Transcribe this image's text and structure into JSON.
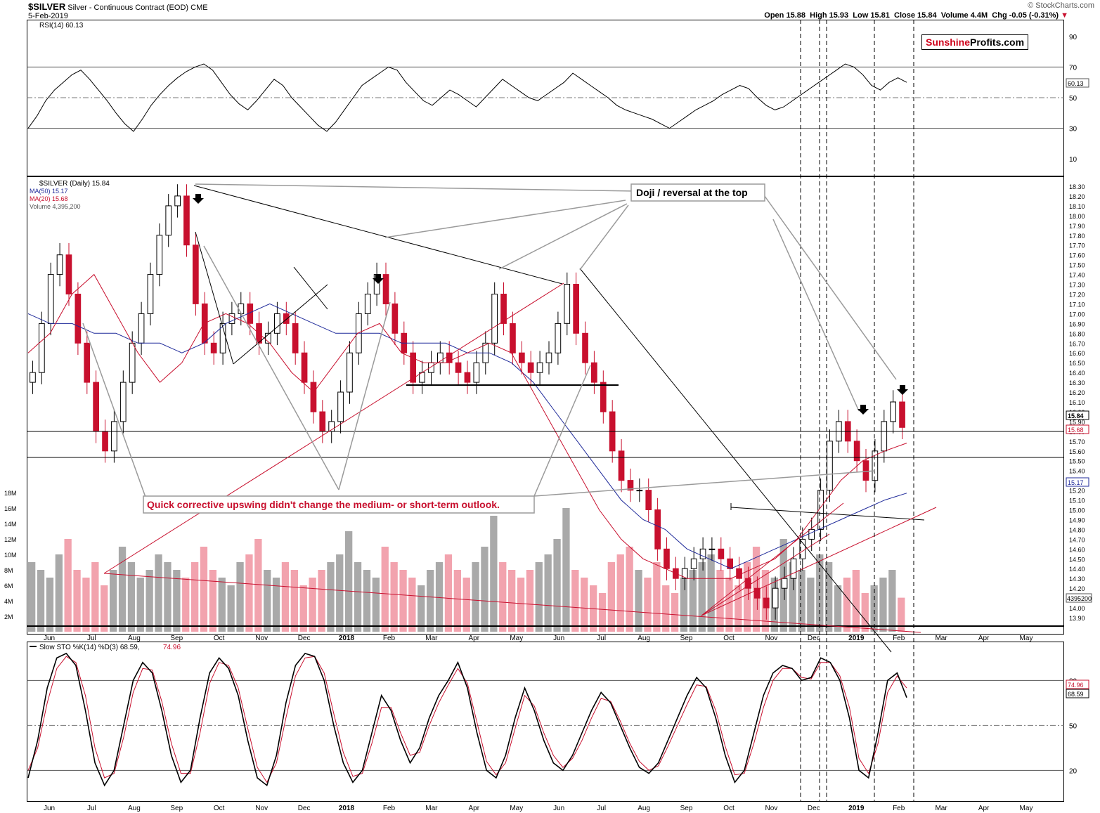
{
  "header": {
    "symbol": "$SILVER",
    "description": "Silver - Continuous Contract (EOD)",
    "exchange": "CME",
    "date": "5-Feb-2019",
    "ohlc": {
      "open_label": "Open",
      "open": "15.88",
      "high_label": "High",
      "high": "15.93",
      "low_label": "Low",
      "low": "15.81",
      "close_label": "Close",
      "close": "15.84",
      "volume_label": "Volume",
      "volume": "4.4M",
      "chg_label": "Chg",
      "chg": "-0.05 (-0.31%)"
    },
    "watermark": "© StockCharts.com"
  },
  "logo": {
    "part1": "Sunshine",
    "part2": "Profits.com"
  },
  "colors": {
    "up": "#000000",
    "down": "#c8102e",
    "ma50": "#1f2a9a",
    "ma20": "#c8102e",
    "vol_up": "#a9a9a9",
    "vol_down": "#f2a3ae",
    "annot_red": "#c8102e"
  },
  "annotations": {
    "doji": "Doji / reversal at the top",
    "corrective": "Quick corrective upswing didn't change the medium- or short-term outlook."
  },
  "chart_data": [
    {
      "type": "line",
      "panel": "rsi",
      "title": "RSI(14) 60.13",
      "yticks": [
        90,
        70,
        50,
        30,
        10
      ],
      "ylim": [
        0,
        100
      ],
      "overbought": 70,
      "oversold": 30,
      "midline": 50,
      "last_value_label": "60.13",
      "series": [
        {
          "name": "RSI(14)",
          "values": [
            30,
            38,
            48,
            55,
            60,
            65,
            68,
            62,
            55,
            48,
            40,
            33,
            28,
            36,
            45,
            52,
            58,
            63,
            67,
            70,
            72,
            68,
            60,
            52,
            46,
            42,
            48,
            55,
            62,
            58,
            50,
            44,
            38,
            32,
            28,
            34,
            42,
            50,
            58,
            62,
            66,
            70,
            68,
            60,
            54,
            48,
            45,
            50,
            55,
            52,
            48,
            44,
            50,
            56,
            62,
            58,
            54,
            50,
            48,
            52,
            56,
            60,
            66,
            62,
            58,
            54,
            50,
            45,
            42,
            40,
            38,
            36,
            33,
            30,
            34,
            38,
            42,
            45,
            48,
            52,
            55,
            58,
            56,
            50,
            45,
            42,
            44,
            48,
            52,
            56,
            60,
            64,
            68,
            72,
            70,
            65,
            58,
            55,
            60,
            63,
            60
          ]
        }
      ]
    },
    {
      "type": "candlestick",
      "panel": "price",
      "title": "$SILVER (Daily) 15.84",
      "legend": [
        "$SILVER (Daily) 15.84",
        "MA(50) 15.17",
        "MA(20) 15.68",
        "Volume 4,395,200"
      ],
      "x_tick_labels": [
        "Jun",
        "Jul",
        "Aug",
        "Sep",
        "Oct",
        "Nov",
        "Dec",
        "2018",
        "Feb",
        "Mar",
        "Apr",
        "May",
        "Jun",
        "Jul",
        "Aug",
        "Sep",
        "Oct",
        "Nov",
        "Dec",
        "2019",
        "Feb",
        "Mar",
        "Apr",
        "May"
      ],
      "ylim": [
        13.85,
        18.35
      ],
      "yticks": [
        "18.30",
        "18.20",
        "18.10",
        "18.00",
        "17.90",
        "17.80",
        "17.70",
        "17.60",
        "17.50",
        "17.40",
        "17.30",
        "17.20",
        "17.10",
        "17.00",
        "16.90",
        "16.80",
        "16.70",
        "16.60",
        "16.50",
        "16.40",
        "16.30",
        "16.20",
        "16.10",
        "16.00",
        "15.90",
        "15.80",
        "15.70",
        "15.60",
        "15.50",
        "15.40",
        "15.30",
        "15.20",
        "15.10",
        "15.00",
        "14.90",
        "14.80",
        "14.70",
        "14.60",
        "14.50",
        "14.40",
        "14.30",
        "14.20",
        "14.10",
        "14.00",
        "13.90"
      ],
      "price_labels": [
        "15.84",
        "15.68",
        "15.17"
      ],
      "close": [
        16.4,
        16.9,
        17.4,
        17.6,
        17.2,
        16.7,
        16.3,
        15.8,
        15.6,
        15.9,
        16.3,
        16.7,
        17.0,
        17.4,
        17.8,
        18.1,
        18.2,
        17.7,
        17.1,
        16.7,
        16.6,
        16.9,
        17.0,
        17.1,
        16.9,
        16.7,
        16.8,
        17.0,
        16.9,
        16.6,
        16.3,
        16.0,
        15.8,
        15.9,
        16.2,
        16.6,
        17.0,
        17.2,
        17.4,
        17.1,
        16.8,
        16.6,
        16.3,
        16.4,
        16.5,
        16.6,
        16.5,
        16.4,
        16.3,
        16.5,
        16.7,
        17.2,
        16.9,
        16.6,
        16.5,
        16.4,
        16.5,
        16.6,
        16.9,
        17.3,
        16.8,
        16.5,
        16.3,
        16.0,
        15.6,
        15.3,
        15.2,
        15.2,
        15.0,
        14.6,
        14.4,
        14.3,
        14.4,
        14.5,
        14.6,
        14.6,
        14.5,
        14.4,
        14.3,
        14.2,
        14.1,
        14.0,
        14.2,
        14.3,
        14.5,
        14.7,
        14.8,
        15.2,
        15.7,
        15.9,
        15.7,
        15.5,
        15.3,
        15.6,
        15.9,
        16.1,
        15.84
      ],
      "ma50": [
        17.0,
        16.9,
        16.9,
        16.8,
        16.8,
        16.7,
        16.7,
        16.6,
        16.7,
        16.9,
        17.0,
        17.1,
        17.0,
        16.9,
        16.8,
        16.8,
        16.8,
        16.7,
        16.7,
        16.7,
        16.6,
        16.6,
        16.5,
        16.3,
        16.0,
        15.7,
        15.4,
        15.1,
        14.9,
        14.8,
        14.6,
        14.5,
        14.4,
        14.5,
        14.6,
        14.7,
        14.8,
        14.9,
        15.0,
        15.1,
        15.17
      ],
      "ma20": [
        16.6,
        16.8,
        17.2,
        17.4,
        17.0,
        16.6,
        16.3,
        16.5,
        16.9,
        17.0,
        16.9,
        16.7,
        16.4,
        16.2,
        16.5,
        16.8,
        16.9,
        16.6,
        16.5,
        16.5,
        16.6,
        16.7,
        16.6,
        16.2,
        15.8,
        15.4,
        15.0,
        14.7,
        14.5,
        14.4,
        14.3,
        14.3,
        14.3,
        14.4,
        14.5,
        14.7,
        15.0,
        15.3,
        15.5,
        15.6,
        15.68
      ]
    },
    {
      "type": "bar",
      "panel": "volume",
      "title": "Volume 4,395,200",
      "yticks": [
        "18M",
        "16M",
        "14M",
        "12M",
        "10M",
        "8M",
        "6M",
        "4M",
        "2M"
      ],
      "ylim": [
        0,
        19000000
      ],
      "last_value_label": "4395200",
      "values": [
        9,
        8,
        7,
        10,
        12,
        8,
        7,
        9,
        6,
        8,
        11,
        9,
        7,
        8,
        10,
        9,
        8,
        7,
        9,
        11,
        8,
        7,
        6,
        9,
        10,
        12,
        8,
        7,
        9,
        8,
        6,
        7,
        8,
        9,
        10,
        13,
        9,
        8,
        7,
        11,
        9,
        8,
        7,
        6,
        8,
        9,
        10,
        8,
        7,
        9,
        11,
        15,
        9,
        8,
        7,
        8,
        9,
        10,
        12,
        16,
        8,
        7,
        6,
        5,
        9,
        10,
        11,
        8,
        7,
        9,
        6,
        5,
        7,
        8,
        9,
        10,
        8,
        7,
        6,
        9,
        11,
        8,
        7,
        12,
        9,
        8,
        7,
        10,
        9,
        6,
        7,
        8,
        5,
        6,
        7,
        8,
        4.4
      ]
    },
    {
      "type": "line",
      "panel": "stochastic",
      "title": "Slow STO %K(14) %D(3) 68.59, 74.96",
      "title_k": "Slow STO %K(14) %D(3) 68.59,",
      "title_d": "74.96",
      "yticks": [
        80,
        50,
        20
      ],
      "ylim": [
        0,
        105
      ],
      "last_value_labels": [
        "74.96",
        "68.59"
      ],
      "x_tick_labels": [
        "Jun",
        "Jul",
        "Aug",
        "Sep",
        "Oct",
        "Nov",
        "Dec",
        "2018",
        "Feb",
        "Mar",
        "Apr",
        "May",
        "Jun",
        "Jul",
        "Aug",
        "Sep",
        "Oct",
        "Nov",
        "Dec",
        "2019",
        "Feb",
        "Mar",
        "Apr",
        "May"
      ],
      "series": [
        {
          "name": "%K",
          "values": [
            15,
            40,
            75,
            95,
            98,
            90,
            60,
            25,
            10,
            20,
            50,
            80,
            92,
            85,
            60,
            30,
            12,
            20,
            55,
            85,
            95,
            88,
            70,
            40,
            15,
            10,
            30,
            65,
            90,
            98,
            96,
            80,
            50,
            25,
            12,
            20,
            45,
            70,
            60,
            40,
            25,
            35,
            55,
            70,
            80,
            92,
            75,
            45,
            20,
            15,
            30,
            55,
            75,
            60,
            40,
            25,
            20,
            30,
            45,
            60,
            72,
            65,
            50,
            35,
            22,
            18,
            25,
            40,
            55,
            70,
            82,
            75,
            55,
            30,
            12,
            20,
            45,
            70,
            85,
            90,
            88,
            80,
            82,
            95,
            92,
            80,
            55,
            20,
            15,
            45,
            80,
            85,
            68.59
          ]
        },
        {
          "name": "%D",
          "values": [
            20,
            35,
            65,
            88,
            96,
            92,
            70,
            35,
            15,
            18,
            42,
            72,
            88,
            87,
            66,
            38,
            18,
            18,
            45,
            78,
            92,
            90,
            75,
            48,
            22,
            12,
            25,
            55,
            83,
            95,
            96,
            85,
            58,
            32,
            16,
            18,
            38,
            62,
            62,
            45,
            30,
            32,
            50,
            65,
            77,
            88,
            78,
            52,
            26,
            17,
            25,
            48,
            70,
            63,
            45,
            30,
            22,
            28,
            40,
            55,
            68,
            66,
            53,
            38,
            26,
            20,
            23,
            36,
            50,
            64,
            77,
            76,
            60,
            36,
            17,
            18,
            38,
            62,
            80,
            88,
            88,
            82,
            81,
            92,
            92,
            83,
            62,
            28,
            18,
            38,
            72,
            83,
            74.96
          ]
        }
      ]
    }
  ]
}
